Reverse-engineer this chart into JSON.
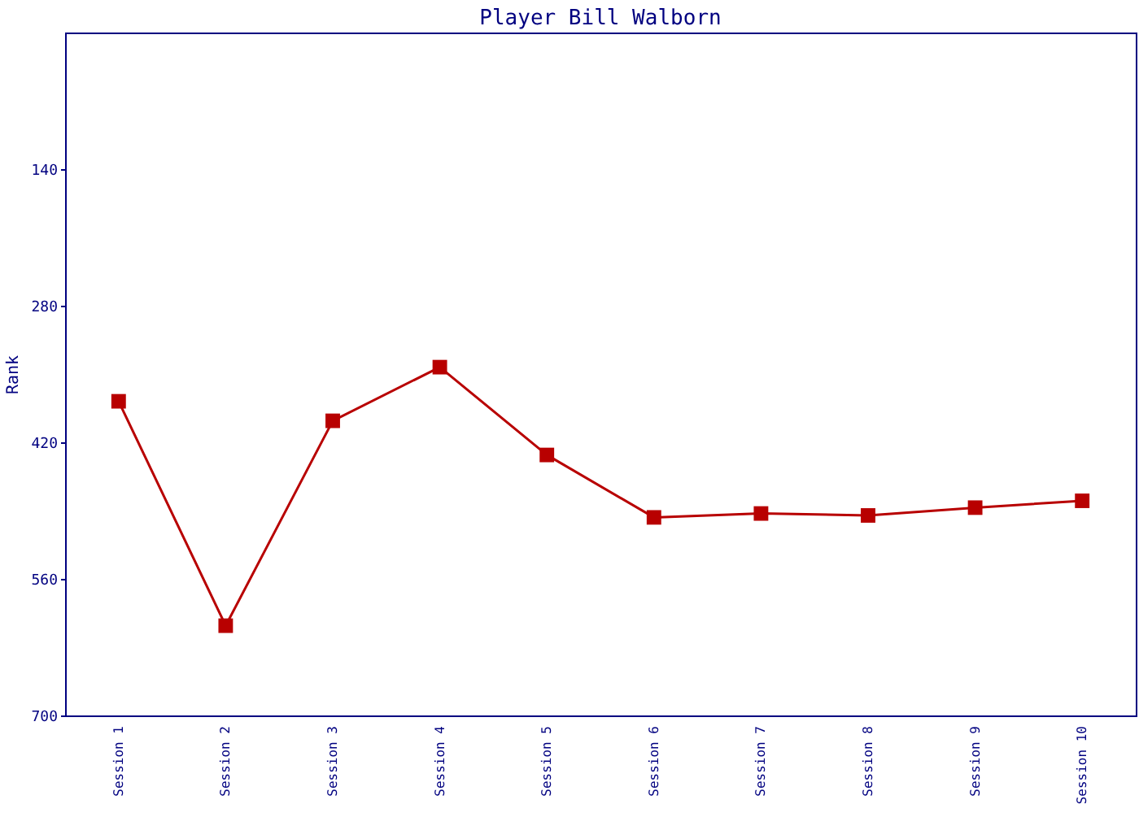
{
  "chart_data": {
    "type": "line",
    "title": "Player Bill Walborn",
    "ylabel": "Rank",
    "categories": [
      "Session 1",
      "Session 2",
      "Session 3",
      "Session 4",
      "Session 5",
      "Session 6",
      "Session 7",
      "Session 8",
      "Session 9",
      "Session 10"
    ],
    "series": [
      {
        "color": "#b80000",
        "values": [
          378,
          608,
          398,
          343,
          433,
          497,
          493,
          495,
          487,
          480
        ]
      }
    ],
    "ylim": [
      700,
      0
    ],
    "yticks": [
      140,
      280,
      420,
      560,
      700
    ],
    "grid": false,
    "legend": false,
    "marker": "square",
    "line_style": "solid"
  }
}
